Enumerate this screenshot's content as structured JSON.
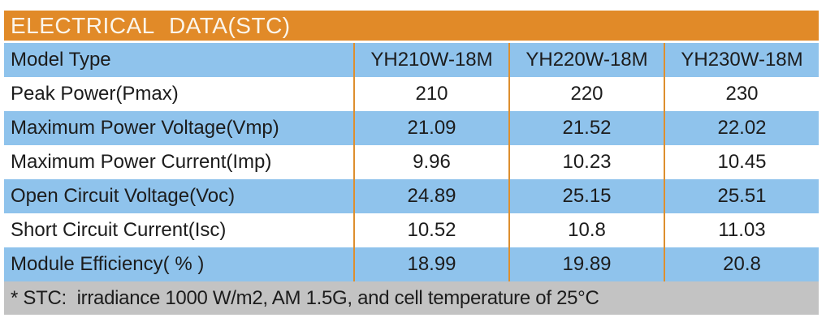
{
  "colors": {
    "header_bg": "#E18A28",
    "header_text": "#FBF5EA",
    "row_blue": "#8FC3EC",
    "row_white": "#FFFFFF",
    "divider": "#DE8F2E",
    "footer_bg": "#C3C3C3",
    "text": "#1C1C1C"
  },
  "table": {
    "title": "ELECTRICAL DATA(STC)",
    "columns": [
      "Model Type",
      "YH210W-18M",
      "YH220W-18M",
      "YH230W-18M"
    ],
    "rows": [
      {
        "label": "Peak Power(Pmax)",
        "values": [
          "210",
          "220",
          "230"
        ]
      },
      {
        "label": "Maximum Power Voltage(Vmp)",
        "values": [
          "21.09",
          "21.52",
          "22.02"
        ]
      },
      {
        "label": "Maximum Power Current(Imp)",
        "values": [
          "9.96",
          "10.23",
          "10.45"
        ]
      },
      {
        "label": "Open Circuit Voltage(Voc)",
        "values": [
          "24.89",
          "25.15",
          "25.51"
        ]
      },
      {
        "label": "Short Circuit Current(Isc)",
        "values": [
          "10.52",
          "10.8",
          "11.03"
        ]
      },
      {
        "label": "Module Efficiency( % )",
        "values": [
          "18.99",
          "19.89",
          "20.8"
        ]
      }
    ],
    "footnote": "* STC:  irradiance 1000 W/m2, AM 1.5G, and cell temperature of 25°C"
  }
}
